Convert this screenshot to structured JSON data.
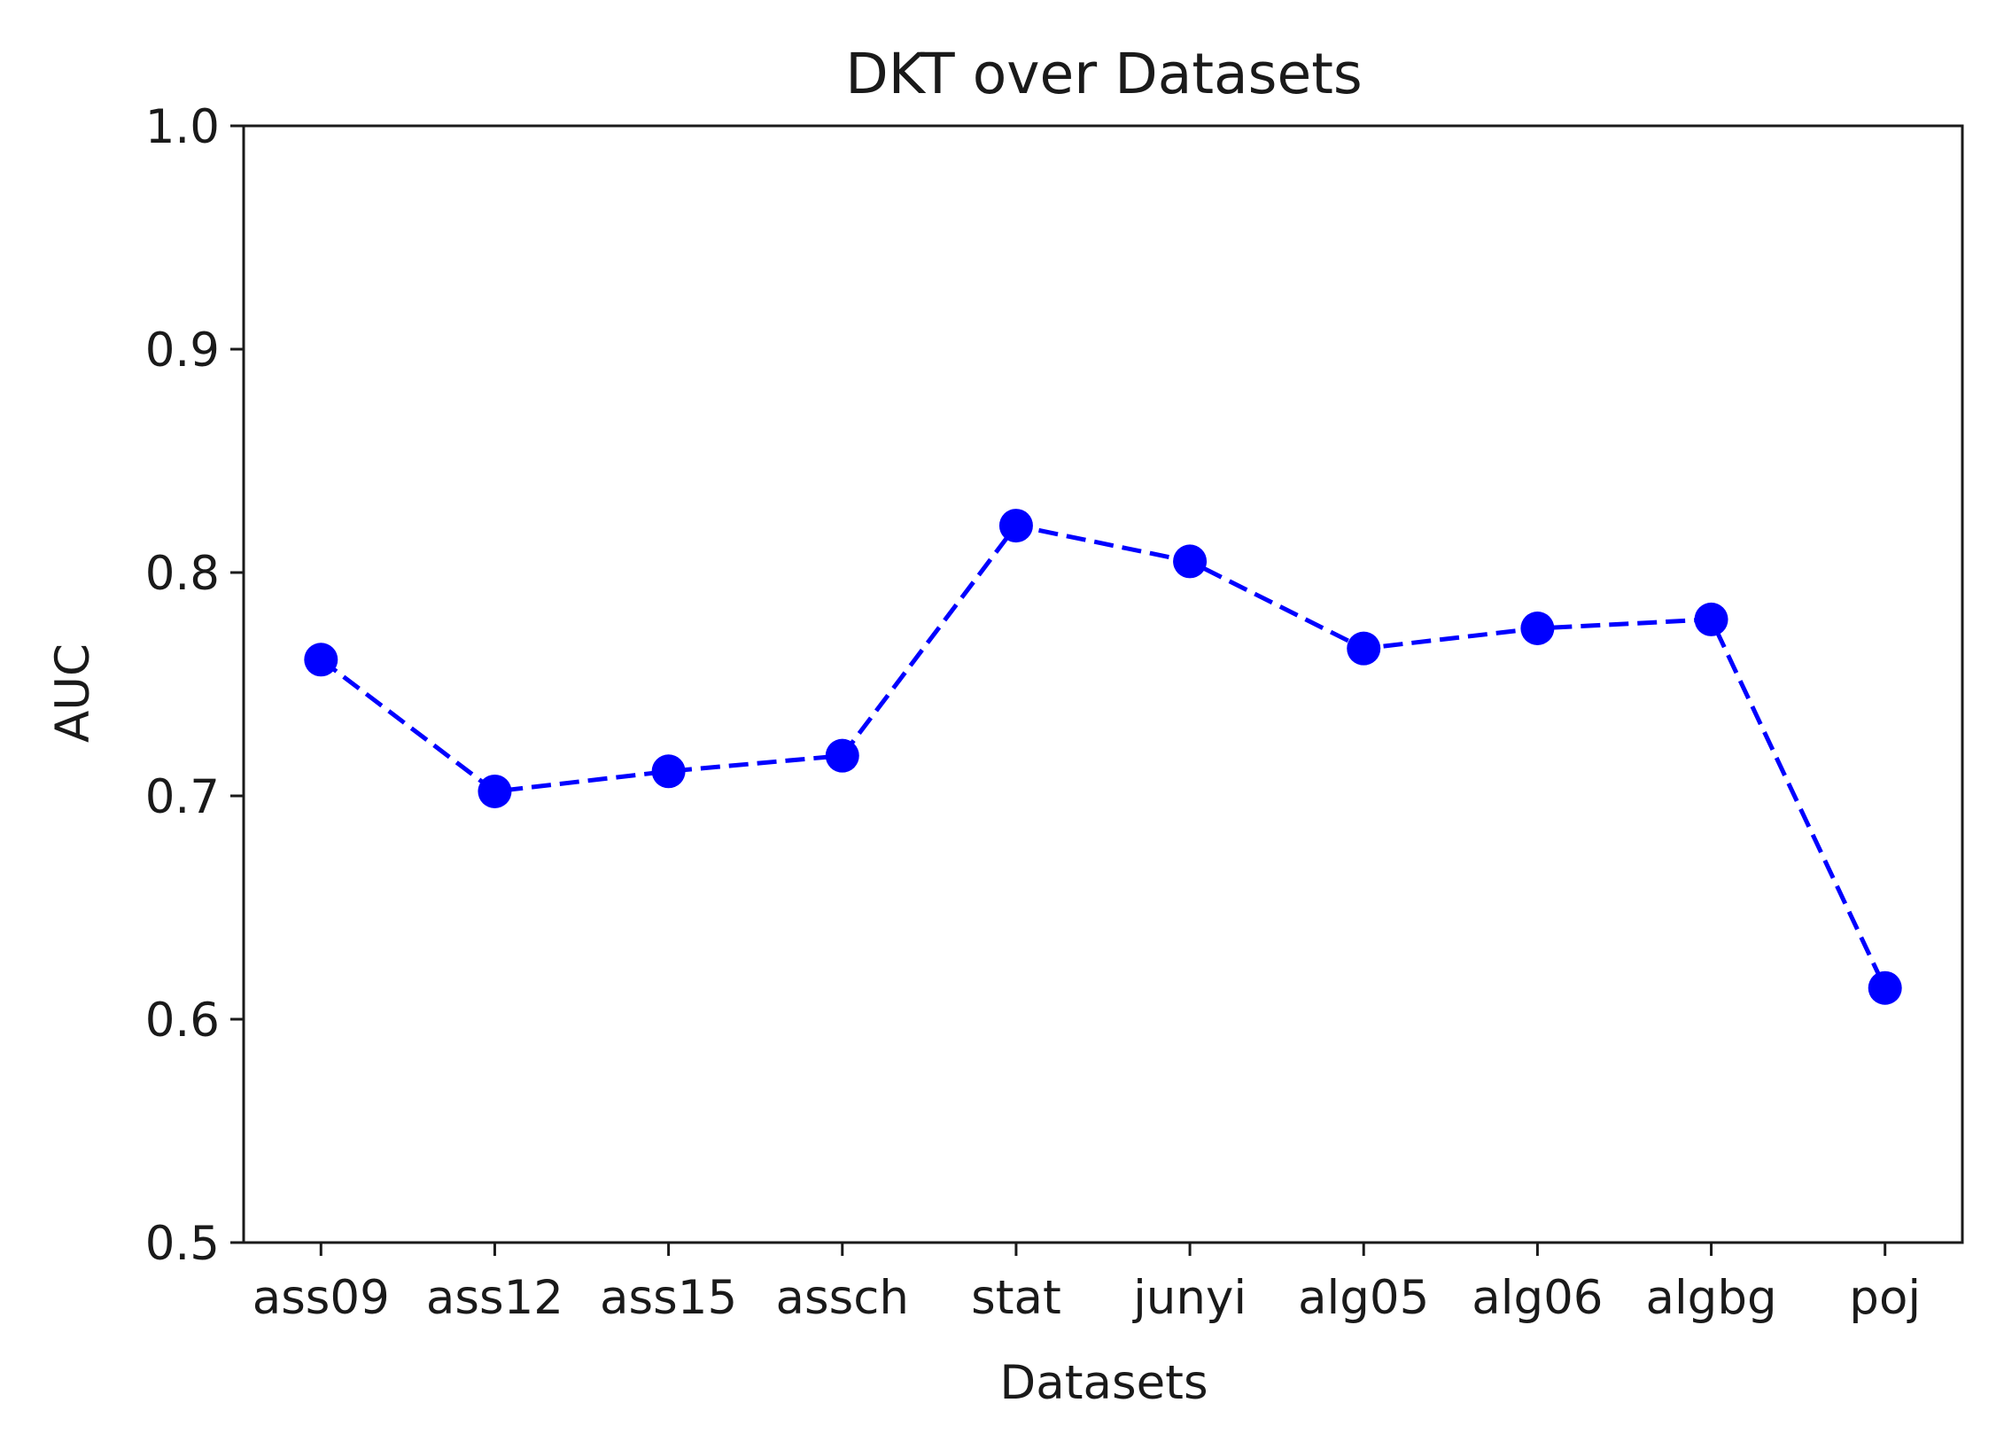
{
  "chart_data": {
    "type": "line",
    "title": "DKT over Datasets",
    "xlabel": "Datasets",
    "ylabel": "AUC",
    "categories": [
      "ass09",
      "ass12",
      "ass15",
      "assch",
      "stat",
      "junyi",
      "alg05",
      "alg06",
      "algbg",
      "poj"
    ],
    "series": [
      {
        "values": [
          0.761,
          0.702,
          0.711,
          0.718,
          0.821,
          0.805,
          0.766,
          0.775,
          0.779,
          0.614
        ],
        "color": "#0000ff",
        "line_style": "dashed",
        "marker": "circle"
      }
    ],
    "ylim": [
      0.5,
      1.0
    ],
    "yticks": [
      0.5,
      0.6,
      0.7,
      0.8,
      0.9,
      1.0
    ],
    "ytick_labels": [
      "0.5",
      "0.6",
      "0.7",
      "0.8",
      "0.9",
      "1.0"
    ],
    "grid": false,
    "legend": false
  }
}
